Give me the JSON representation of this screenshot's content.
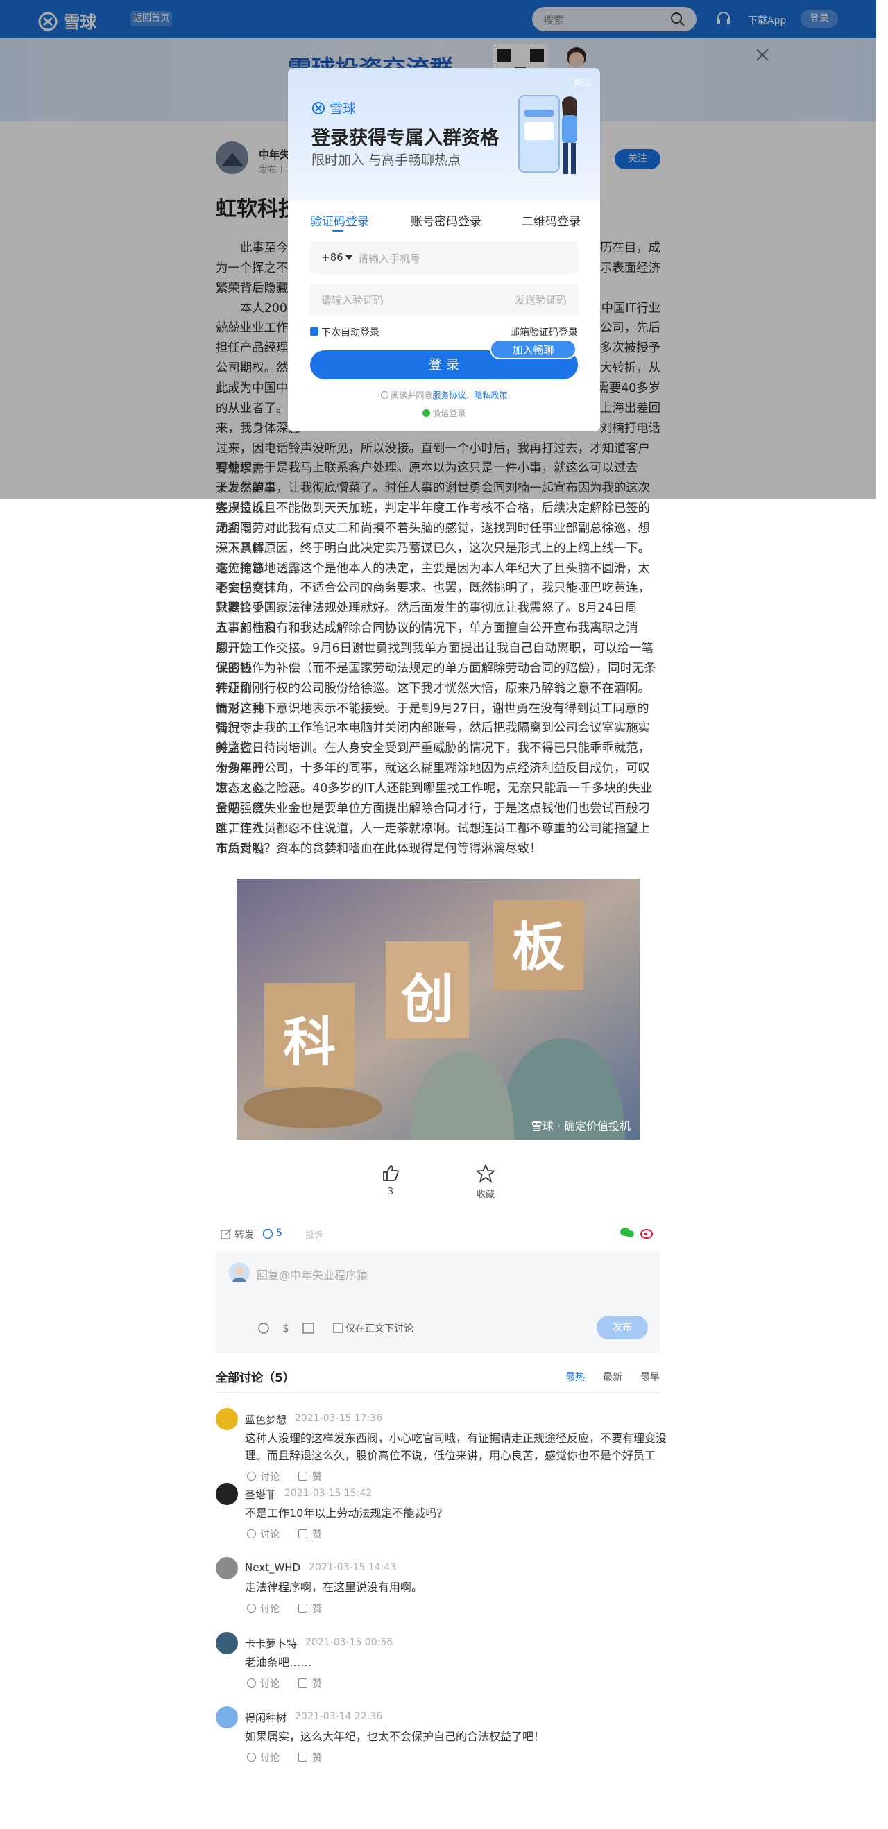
{
  "nav": {
    "logo": "雪球",
    "back": "返回首页",
    "search": "搜索",
    "download": "下载App",
    "login": "登录"
  },
  "banner": {
    "title": "雪球投资交流群"
  },
  "modal": {
    "skip": "跳过",
    "logo": "雪球",
    "title": "登录获得专属入群资格",
    "subtitle": "限时加入 与高手畅聊热点",
    "tabs": [
      "验证码登录",
      "账号密码登录",
      "二维码登录"
    ],
    "country_code": "+86",
    "phone_placeholder": "请输入手机号",
    "code_placeholder": "请输入验证码",
    "send_code": "发送验证码",
    "auto_login": "下次自动登录",
    "email_login": "邮箱验证码登录",
    "login_button": "登 录",
    "join_badge": "加入畅聊",
    "agree_prefix": "阅读并同意",
    "service": "服务协议",
    "sep": "、",
    "privacy": "隐私政策",
    "wechat": "微信登录"
  },
  "article": {
    "author": "中年失业程序猿",
    "meta": "发布于",
    "follow": "关注",
    "title": "虹软科技",
    "paragraphs": [
      [
        {
          "left": "此事至今已",
          "right": "历历在目，成"
        },
        {
          "left": "为一个挥之不去",
          "right": "揭示表面经济"
        },
        {
          "left": "繁荣背后隐藏的"
        }
      ],
      [
        {
          "left": "本人2000",
          "right": "在中国IT行业"
        },
        {
          "left": "兢兢业业工作了",
          "right": "软公司，先后"
        },
        {
          "left": "担任产品经理、",
          "right": "多次被授予"
        },
        {
          "left": "公司期权。然而",
          "right": "大转折，从"
        },
        {
          "left": "此成为中国中年",
          "right": "需要40多岁"
        },
        {
          "left": "的从业者了。后",
          "right": "上海出差回"
        },
        {
          "left": "来，我身体深感",
          "right": "刘楠打电话"
        },
        {
          "full": "过来，因电话铃声没听见，所以没接。直到一个小时后，我再打过去，才知道客户有需求需"
        },
        {
          "full": "要处理，于是我马上联系客户处理。原本以为这只是一件小事，就这么可以过去了，然第二"
        },
        {
          "full": "天发生的事，让我彻底懵菜了。时任人事的谢世勇会同刘楠一起宣布因为我的这次失误造成"
        },
        {
          "full": "客户投诉且不能做到天天加班，判定半年度工作考核不合格，后续决定解除已签的无期限劳"
        },
        {
          "full": "动合同。对此我有点丈二和尚摸不着头脑的感觉，遂找到时任事业部副总徐巡，想深入了解"
        },
        {
          "full": "一下具体原因，终于明白此决定实乃蓄谋已久，这次只是形式上的上纲上线一下。这位徐总"
        },
        {
          "full": "毫无掩饰地透露这个是他本人的决定，主要是因为本人年纪大了且头脑不圆滑，太老实巴交，"
        },
        {
          "full": "不会拐弯抹角，不适合公司的商务要求。也罢，既然挑明了，我只能哑巴吃黄连，默默接受，"
        },
        {
          "full": "只要合乎国家法律法规处理就好。然后面发生的事彻底让我震怒了。8月24日周五，刘楠和"
        },
        {
          "full": "人事部在没有和我达成解除合同协议的情况下，单方面擅自公开宣布我离职之消息，立"
        },
        {
          "full": "即开始工作交接。9月6日谢世勇找到我单方面提出让我自己自动离职，可以给一笔保密协"
        },
        {
          "full": "议的钱作为补偿（而不是国家劳动法规定的单方面解除劳动合同的赔偿），同时无条件原价"
        },
        {
          "full": "转让刚刚行权的公司股份给徐巡。这下我才恍然大悟，原来乃醉翁之意不在酒啊。面对这种"
        },
        {
          "full": "情形，我下意识地表示不能接受。于是到9月27日，谢世勇在没有得到员工同意的情况下，"
        },
        {
          "full": "强行夺走我的工作笔记本电脑并关闭内部账号，然后把我隔离到公司会议室实施实时监控，"
        },
        {
          "full": "美之名日待岗培训。在人身安全受到严重威胁的情况下，我不得已只能乖乖就范，匆匆离开"
        },
        {
          "full": "十多年的公司，十多年的同事，就这么糊里糊涂地因为点经济利益反目成仇，可叹世态之炎"
        },
        {
          "full": "凉，人心之险恶。40多岁的IT人还能到哪里找工作呢，无奈只能靠一千多块的失业金勉强度"
        },
        {
          "full": "日吧。然失业金也是要单位方面提出解除合同才行，于是这点钱他们也尝试百般刁难，连社"
        },
        {
          "full": "区工作人员都忍不住说道，人一走茶就凉啊。试想连员工都不尊重的公司能指望上市后对股"
        },
        {
          "full": "东负责吗？资本的贪婪和嗜血在此体现得是何等得淋漓尽致！"
        }
      ]
    ],
    "image": {
      "chars": [
        "科",
        "创",
        "板"
      ],
      "watermark": "雪球 · 确定价值投机"
    },
    "likes": "3",
    "favorite": "收藏"
  },
  "actions": {
    "repost": "转发",
    "comments": "5",
    "report": "投诉"
  },
  "reply_box": {
    "placeholder": "回复@中年失业程序猿",
    "only_here": "仅在正文下讨论",
    "publish": "发布"
  },
  "discussion": {
    "heading": "全部讨论（5）",
    "sorts": [
      "最热",
      "最新",
      "最早"
    ],
    "reply": "讨论",
    "like": "赞",
    "comments": [
      {
        "user": "蓝色梦想",
        "time": "2021-03-15 17:36",
        "lines": [
          "这种人没理的这样发东西阀，小心吃官司哦，有证据请走正规途径反应，不要有理变没",
          "理。而且辞退这么久，股价高位不说，低位来讲，用心良苦，感觉你也不是个好员工"
        ]
      },
      {
        "user": "圣塔菲",
        "time": "2021-03-15 15:42",
        "lines": [
          "不是工作10年以上劳动法规定不能裁吗？"
        ]
      },
      {
        "user": "Next_WHD",
        "time": "2021-03-15 14:43",
        "lines": [
          "走法律程序啊，在这里说没有用啊。"
        ]
      },
      {
        "user": "卡卡萝卜特",
        "time": "2021-03-15 00:56",
        "lines": [
          "老油条吧……"
        ]
      },
      {
        "user": "得闲种树",
        "time": "2021-03-14 22:36",
        "lines": [
          "如果属实，这么大年纪，也太不会保护自己的合法权益了吧！"
        ]
      }
    ]
  }
}
